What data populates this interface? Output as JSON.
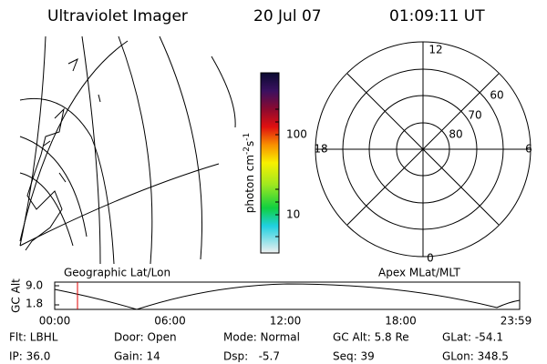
{
  "header": {
    "instrument": "Ultraviolet Imager",
    "date": "20 Jul 07",
    "time": "01:09:11 UT"
  },
  "colorbar": {
    "label": [
      "photon cm",
      "-2",
      "s",
      "-1"
    ],
    "ticks": [
      "100",
      "10"
    ]
  },
  "polar": {
    "clock": [
      "12",
      "18",
      "6",
      "0"
    ],
    "latitudes": [
      "60",
      "70",
      "80"
    ]
  },
  "timeline": {
    "axis_label": "GC Alt",
    "y_labels": [
      "9.0",
      "1.8"
    ],
    "left_title": "Geographic Lat/Lon",
    "right_title": "Apex MLat/MLT",
    "times": [
      "00:00",
      "06:00",
      "12:00",
      "18:00",
      "23:59"
    ]
  },
  "footer": {
    "rows": [
      [
        "Flt: LBHL",
        "Door: Open",
        "Mode: Normal",
        "GC Alt: 5.8 Re",
        "GLat: -54.1"
      ],
      [
        "IP: 36.0",
        "Gain: 14",
        "Dsp:   -5.7",
        "Seq: 39",
        "GLon: 348.5"
      ]
    ]
  }
}
